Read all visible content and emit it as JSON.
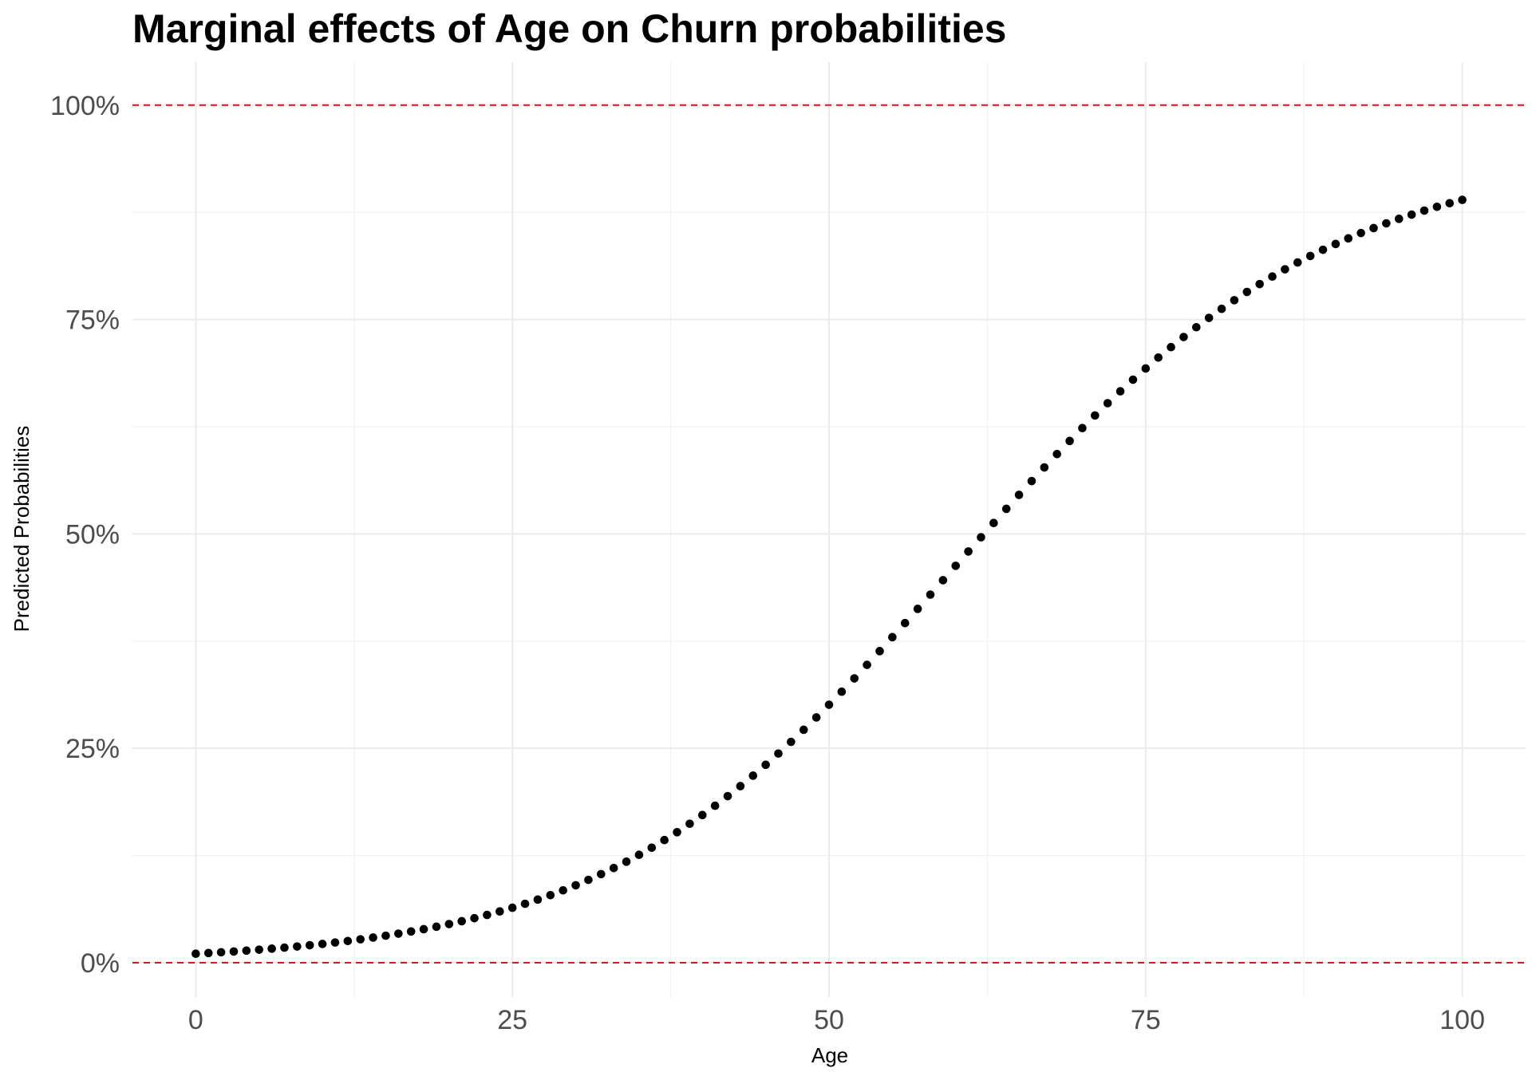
{
  "chart_data": {
    "type": "scatter",
    "title": "Marginal effects of Age on Churn probabilities",
    "xlabel": "Age",
    "ylabel": "Predicted Probabilities",
    "xlim": [
      -5,
      105
    ],
    "ylim": [
      -0.04,
      1.05
    ],
    "x_ticks": [
      0,
      25,
      50,
      75,
      100
    ],
    "x_tick_labels": [
      "0",
      "25",
      "50",
      "75",
      "100"
    ],
    "y_ticks": [
      0,
      0.25,
      0.5,
      0.75,
      1.0
    ],
    "y_tick_labels": [
      "0%",
      "25%",
      "50%",
      "75%",
      "100%"
    ],
    "grid": true,
    "reference_lines": [
      {
        "axis": "y",
        "value": 0,
        "style": "dashed",
        "color": "#e8101c"
      },
      {
        "axis": "y",
        "value": 1,
        "style": "dashed",
        "color": "#e8101c"
      }
    ],
    "point_color": "#000000",
    "series": [
      {
        "name": "Predicted probability",
        "model": "logistic",
        "intercept": -4.55,
        "slope": 0.0745,
        "x": [
          0,
          1,
          2,
          3,
          4,
          5,
          6,
          7,
          8,
          9,
          10,
          11,
          12,
          13,
          14,
          15,
          16,
          17,
          18,
          19,
          20,
          21,
          22,
          23,
          24,
          25,
          26,
          27,
          28,
          29,
          30,
          31,
          32,
          33,
          34,
          35,
          36,
          37,
          38,
          39,
          40,
          41,
          42,
          43,
          44,
          45,
          46,
          47,
          48,
          49,
          50,
          51,
          52,
          53,
          54,
          55,
          56,
          57,
          58,
          59,
          60,
          61,
          62,
          63,
          64,
          65,
          66,
          67,
          68,
          69,
          70,
          71,
          72,
          73,
          74,
          75,
          76,
          77,
          78,
          79,
          80,
          81,
          82,
          83,
          84,
          85,
          86,
          87,
          88,
          89,
          90,
          91,
          92,
          93,
          94,
          95,
          96,
          97,
          98,
          99,
          100
        ],
        "y": [
          0.0105,
          0.0113,
          0.0122,
          0.0131,
          0.0141,
          0.0152,
          0.0164,
          0.0176,
          0.0189,
          0.0204,
          0.0219,
          0.0236,
          0.0253,
          0.0273,
          0.0293,
          0.0315,
          0.0339,
          0.0364,
          0.0391,
          0.042,
          0.0451,
          0.0484,
          0.0519,
          0.0557,
          0.0598,
          0.0641,
          0.0687,
          0.0736,
          0.0788,
          0.0844,
          0.0903,
          0.0966,
          0.1033,
          0.1104,
          0.1178,
          0.1258,
          0.1341,
          0.143,
          0.1522,
          0.162,
          0.1722,
          0.183,
          0.1942,
          0.2059,
          0.2181,
          0.2308,
          0.2439,
          0.2575,
          0.2716,
          0.286,
          0.3008,
          0.316,
          0.3315,
          0.3473,
          0.3633,
          0.3796,
          0.396,
          0.4126,
          0.4292,
          0.446,
          0.4628,
          0.4795,
          0.4961,
          0.5127,
          0.5292,
          0.5455,
          0.5616,
          0.5775,
          0.5931,
          0.6084,
          0.6234,
          0.6381,
          0.6524,
          0.6663,
          0.6798,
          0.6929,
          0.7056,
          0.7178,
          0.7296,
          0.741,
          0.7519,
          0.7624,
          0.7725,
          0.7821,
          0.7913,
          0.8001,
          0.8085,
          0.8165,
          0.8241,
          0.8313,
          0.8381,
          0.8446,
          0.8508,
          0.8566,
          0.8621,
          0.8674,
          0.8723,
          0.877,
          0.8814,
          0.8856,
          0.8895
        ]
      }
    ]
  }
}
